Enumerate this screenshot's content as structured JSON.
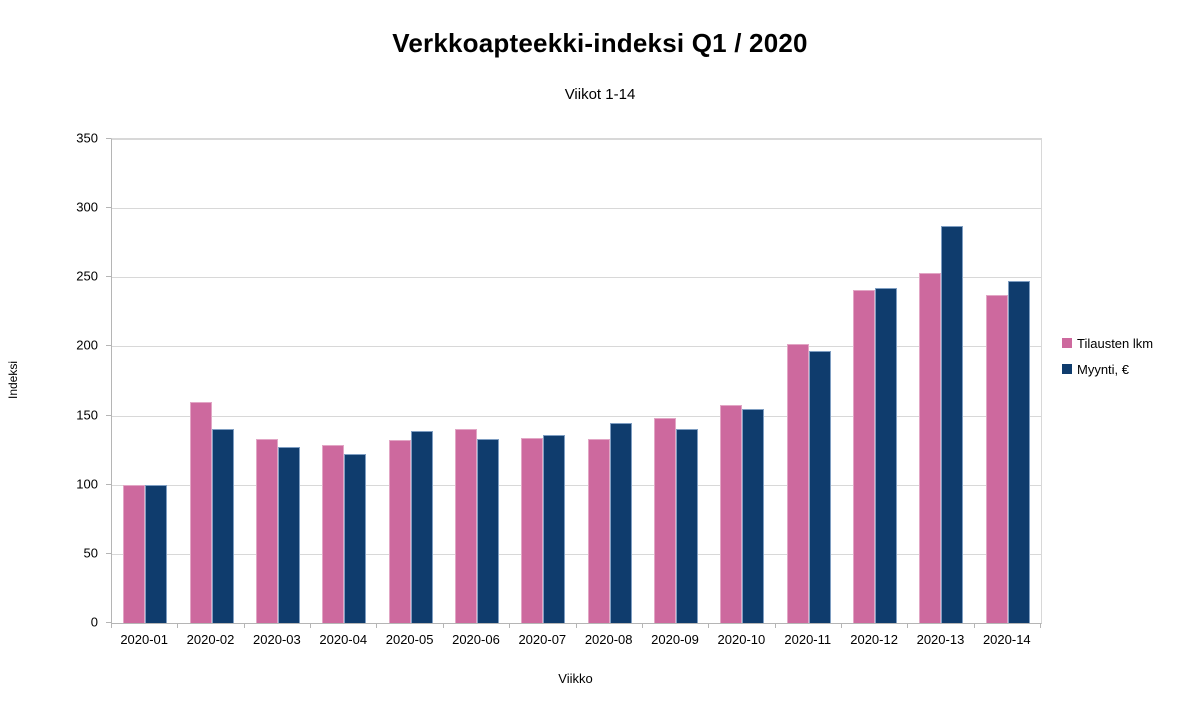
{
  "chart_data": {
    "type": "bar",
    "title": "Verkkoapteekki-indeksi Q1 / 2020",
    "subtitle": "Viikot 1-14",
    "xlabel": "Viikko",
    "ylabel": "Indeksi",
    "ylim": [
      0,
      350
    ],
    "yticks": [
      0,
      50,
      100,
      150,
      200,
      250,
      300,
      350
    ],
    "grid": true,
    "legend_position": "right",
    "background": "#ffffff",
    "gridline_color": "#d8d8d8",
    "axis_color": "#b5b5b5",
    "categories": [
      "2020-01",
      "2020-02",
      "2020-03",
      "2020-04",
      "2020-05",
      "2020-06",
      "2020-07",
      "2020-08",
      "2020-09",
      "2020-10",
      "2020-11",
      "2020-12",
      "2020-13",
      "2020-14"
    ],
    "series": [
      {
        "name": "Tilausten lkm",
        "color": "#cd699e",
        "border_color": "#e2a6c5",
        "values": [
          100,
          160,
          133,
          129,
          132,
          140,
          134,
          133,
          148,
          158,
          202,
          241,
          253,
          237
        ]
      },
      {
        "name": "Myynti, €",
        "color": "#0f3c6d",
        "border_color": "#7f9ec2",
        "values": [
          100,
          140,
          127,
          122,
          139,
          133,
          136,
          145,
          140,
          155,
          197,
          242,
          287,
          247
        ]
      }
    ]
  }
}
